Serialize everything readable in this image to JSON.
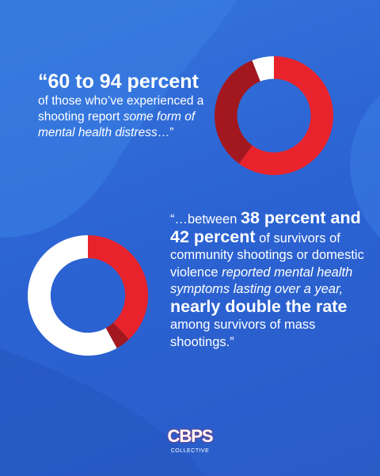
{
  "chart_data": [
    {
      "type": "donut",
      "values": [
        60,
        34,
        6
      ],
      "colors": [
        "#e8232b",
        "#a3181f",
        "#ffffff"
      ]
    },
    {
      "type": "donut",
      "values": [
        38,
        4,
        58
      ],
      "colors": [
        "#e8232b",
        "#a3181f",
        "#ffffff"
      ]
    }
  ],
  "quote1": {
    "headline": "“60 to 94 percent",
    "body": "of those who’ve experienced a shooting report",
    "emphasis": "some form of mental health distress",
    "end": "…”"
  },
  "quote2": {
    "parts": [
      "“…between",
      "38 percent and 42 percent",
      "of survivors of community shootings or domestic violence",
      "reported mental health symptoms lasting over a year,",
      "nearly double the rate",
      "among survivors of mass shootings.”"
    ]
  },
  "logo": {
    "name": "CBPS",
    "sub": "COLLECTIVE"
  }
}
